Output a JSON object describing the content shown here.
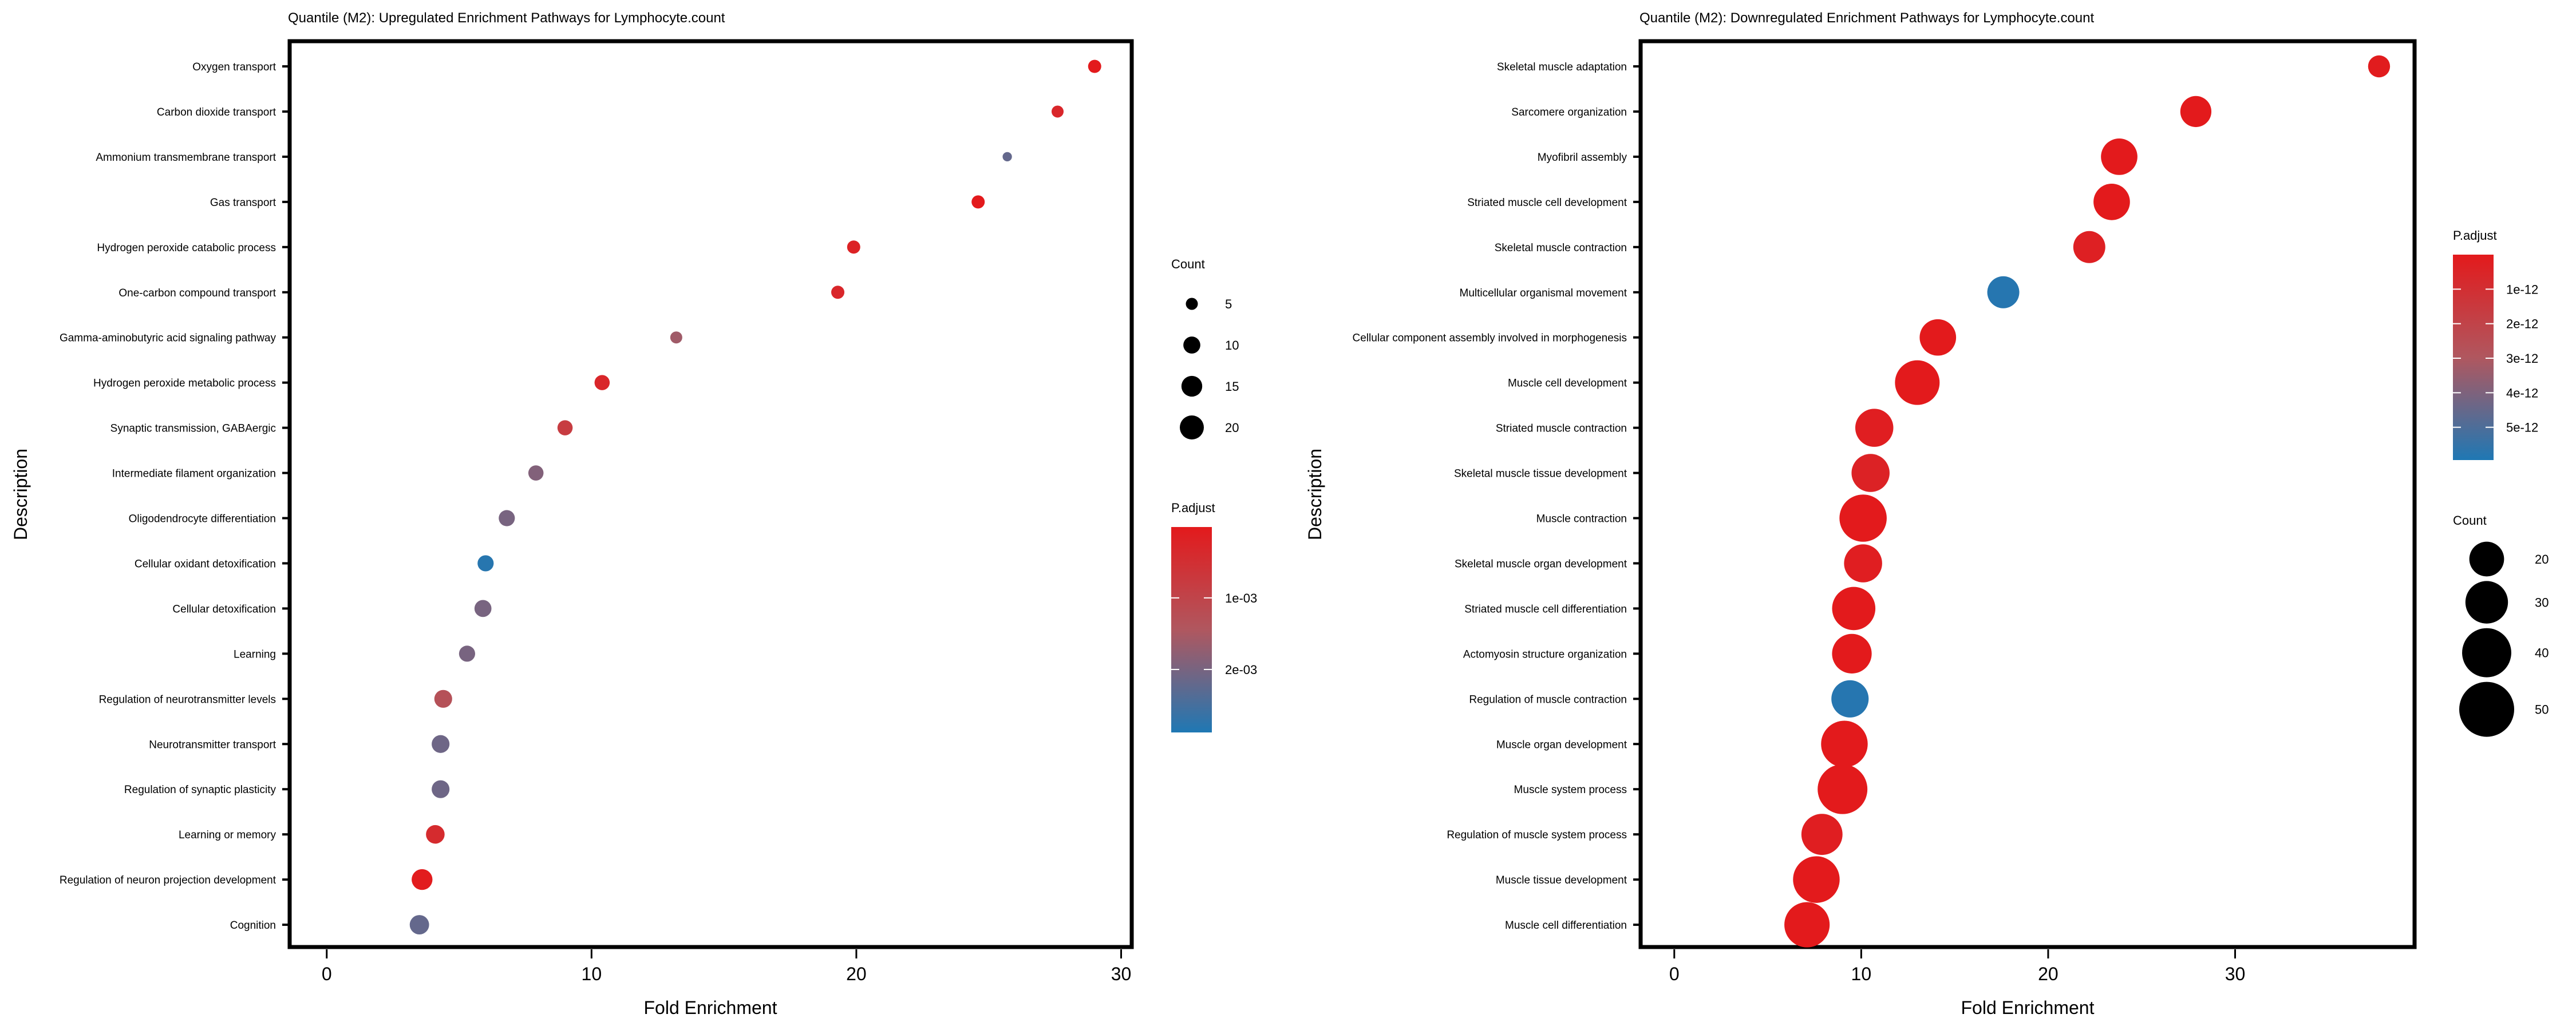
{
  "chart_data": [
    {
      "type": "scatter",
      "title": "Quantile (M2): Upregulated Enrichment Pathways for Lymphocyte.count",
      "xlabel": "Fold Enrichment",
      "ylabel": "Description",
      "xlim": [
        -1.4,
        30.4
      ],
      "xticks": [
        "0",
        "10",
        "20",
        "30"
      ],
      "xtick_values": [
        0,
        10,
        20,
        30
      ],
      "grid": false,
      "categories": [
        "Oxygen transport",
        "Carbon dioxide transport",
        "Ammonium transmembrane transport",
        "Gas transport",
        "Hydrogen peroxide catabolic process",
        "One-carbon compound transport",
        "Gamma-aminobutyric acid signaling pathway",
        "Hydrogen peroxide metabolic process",
        "Synaptic transmission, GABAergic",
        "Intermediate filament organization",
        "Oligodendrocyte differentiation",
        "Cellular oxidant detoxification",
        "Cellular detoxification",
        "Learning",
        "Regulation of neurotransmitter levels",
        "Neurotransmitter transport",
        "Regulation of synaptic plasticity",
        "Learning or memory",
        "Regulation of neuron projection development",
        "Cognition"
      ],
      "x": [
        29.0,
        27.6,
        25.7,
        24.6,
        19.9,
        19.3,
        13.2,
        10.4,
        9.0,
        7.9,
        6.8,
        6.0,
        5.9,
        5.3,
        4.4,
        4.3,
        4.3,
        4.1,
        3.6,
        3.5
      ],
      "count": [
        6,
        5,
        3,
        6,
        6,
        6,
        5,
        8,
        8,
        8,
        9,
        9,
        10,
        9,
        11,
        11,
        11,
        12,
        15,
        13
      ],
      "p_adjust": [
        1e-05,
        0.0003,
        0.0022,
        1e-05,
        0.0002,
        0.0003,
        0.0016,
        0.0003,
        0.0008,
        0.0019,
        0.002,
        0.0028,
        0.002,
        0.002,
        0.0013,
        0.0021,
        0.0021,
        0.0004,
        5e-05,
        0.0022
      ],
      "legend_size": {
        "title": "Count",
        "labels": [
          "5",
          "10",
          "15",
          "20"
        ],
        "values": [
          5,
          10,
          15,
          20
        ],
        "position": "right"
      },
      "legend_color": {
        "title": "P.adjust",
        "labels": [
          "1e-03",
          "2e-03"
        ],
        "values": [
          0.001,
          0.002
        ],
        "range": [
          1e-05,
          0.00288
        ],
        "low_color": "#e31a1c",
        "high_color": "#1f78b4",
        "position": "right"
      }
    },
    {
      "type": "scatter",
      "title": "Quantile (M2): Downregulated Enrichment Pathways for Lymphocyte.count",
      "xlabel": "Fold Enrichment",
      "ylabel": "Description",
      "xlim": [
        -1.8,
        39.6
      ],
      "xticks": [
        "0",
        "10",
        "20",
        "30"
      ],
      "xtick_values": [
        0,
        10,
        20,
        30
      ],
      "grid": false,
      "categories": [
        "Skeletal muscle adaptation",
        "Sarcomere organization",
        "Myofibril assembly",
        "Striated muscle cell development",
        "Skeletal muscle contraction",
        "Multicellular organismal movement",
        "Cellular component assembly involved in morphogenesis",
        "Muscle cell development",
        "Striated muscle contraction",
        "Skeletal muscle tissue development",
        "Muscle contraction",
        "Skeletal muscle organ development",
        "Striated muscle cell differentiation",
        "Actomyosin structure organization",
        "Regulation of muscle contraction",
        "Muscle organ development",
        "Muscle system process",
        "Regulation of muscle system process",
        "Muscle tissue development",
        "Muscle cell differentiation"
      ],
      "x": [
        37.7,
        27.9,
        23.8,
        23.4,
        22.2,
        17.6,
        14.1,
        13.0,
        10.7,
        10.5,
        10.1,
        10.1,
        9.6,
        9.5,
        9.4,
        9.1,
        9.0,
        7.9,
        7.6,
        7.1
      ],
      "count": [
        8,
        16,
        22,
        22,
        17,
        17,
        22,
        33,
        24,
        24,
        37,
        24,
        31,
        26,
        23,
        36,
        41,
        28,
        36,
        34
      ],
      "p_adjust": [
        1e-13,
        1e-14,
        1e-14,
        1e-14,
        3e-13,
        5.8e-12,
        1e-14,
        1e-14,
        2e-13,
        4e-13,
        1e-14,
        2e-13,
        1e-14,
        1e-14,
        5.8e-12,
        1e-14,
        1e-14,
        2e-13,
        1e-14,
        1e-14
      ],
      "legend_color": {
        "title": "P.adjust",
        "labels": [
          "1e-12",
          "2e-12",
          "3e-12",
          "4e-12",
          "5e-12"
        ],
        "values": [
          1e-12,
          2e-12,
          3e-12,
          4e-12,
          5e-12
        ],
        "range": [
          0,
          5.95e-12
        ],
        "low_color": "#e31a1c",
        "high_color": "#1f78b4",
        "position": "right"
      },
      "legend_size": {
        "title": "Count",
        "labels": [
          "20",
          "30",
          "40",
          "50"
        ],
        "values": [
          20,
          30,
          40,
          50
        ],
        "position": "right"
      }
    }
  ]
}
